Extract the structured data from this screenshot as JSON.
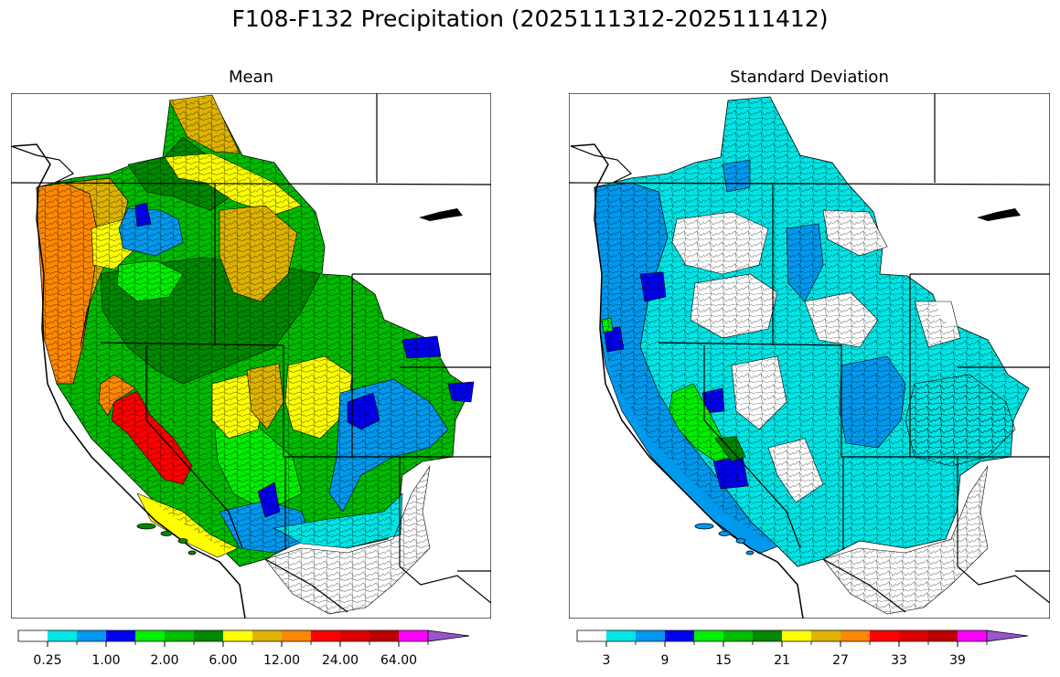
{
  "figure": {
    "title": "F108-F132 Precipitation (2025111312-2025111412)"
  },
  "panels": [
    {
      "title": "Mean",
      "colorbar": {
        "colors": [
          "#ffffff",
          "#00e5e5",
          "#0099ee",
          "#0000ee",
          "#00ee00",
          "#00bb00",
          "#008800",
          "#ffff00",
          "#ddb300",
          "#ff8800",
          "#ff0000",
          "#dd0000",
          "#bb0000",
          "#ff00ff",
          "#9955cc"
        ],
        "tick_labels": [
          "0.25",
          "1.00",
          "2.00",
          "6.00",
          "12.00",
          "24.00",
          "64.00"
        ],
        "extend": "max"
      }
    },
    {
      "title": "Standard Deviation",
      "colorbar": {
        "colors": [
          "#ffffff",
          "#00e5e5",
          "#0099ee",
          "#0000ee",
          "#00ee00",
          "#00bb00",
          "#008800",
          "#ffff00",
          "#ddb300",
          "#ff8800",
          "#ff0000",
          "#dd0000",
          "#bb0000",
          "#ff00ff",
          "#9955cc"
        ],
        "tick_labels": [
          "3",
          "9",
          "15",
          "21",
          "27",
          "33",
          "39"
        ],
        "extend": "max"
      }
    }
  ]
}
